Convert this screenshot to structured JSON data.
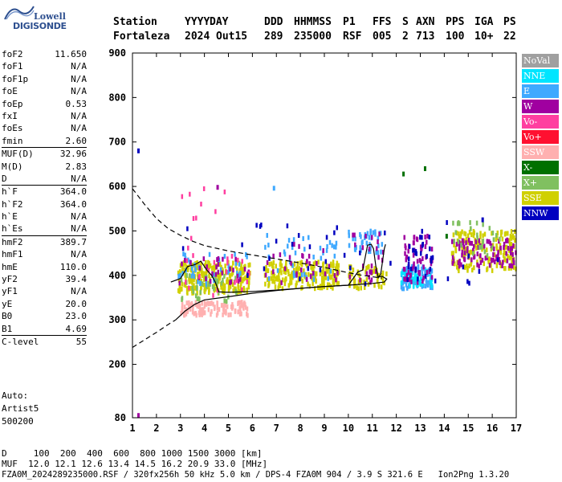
{
  "logo": {
    "top": "Lowell",
    "bottom": "DIGISONDE"
  },
  "header": {
    "labels": [
      "Station",
      "YYYY",
      "DAY",
      "DDD",
      "HHMMSS",
      "P1",
      "FFS",
      "S",
      "AXN",
      "PPS",
      "IGA",
      "PS"
    ],
    "values": [
      "Fortaleza",
      "2024",
      "Out15",
      "289",
      "235000",
      "RSF",
      "005",
      "2",
      "713",
      "100",
      "10+",
      "22"
    ]
  },
  "params": [
    [
      {
        "name": "foF2",
        "value": "11.650"
      },
      {
        "name": "foF1",
        "value": "N/A"
      },
      {
        "name": "foF1p",
        "value": "N/A"
      },
      {
        "name": "foE",
        "value": "N/A"
      },
      {
        "name": "foEp",
        "value": "0.53"
      },
      {
        "name": "fxI",
        "value": "N/A"
      },
      {
        "name": "foEs",
        "value": "N/A"
      },
      {
        "name": "fmin",
        "value": "2.60"
      }
    ],
    [
      {
        "name": "MUF(D)",
        "value": "32.96"
      },
      {
        "name": "M(D)",
        "value": "2.83"
      },
      {
        "name": "D",
        "value": "N/A"
      }
    ],
    [
      {
        "name": "h`F",
        "value": "364.0"
      },
      {
        "name": "h`F2",
        "value": "364.0"
      },
      {
        "name": "h`E",
        "value": "N/A"
      },
      {
        "name": "h`Es",
        "value": "N/A"
      }
    ],
    [
      {
        "name": "hmF2",
        "value": "389.7"
      },
      {
        "name": "hmF1",
        "value": "N/A"
      },
      {
        "name": "hmE",
        "value": "110.0"
      },
      {
        "name": "yF2",
        "value": "39.4"
      },
      {
        "name": "yF1",
        "value": "N/A"
      },
      {
        "name": "yE",
        "value": "20.0"
      },
      {
        "name": "B0",
        "value": "23.0"
      },
      {
        "name": "B1",
        "value": "4.69"
      }
    ],
    [
      {
        "name": "C-level",
        "value": "55"
      }
    ]
  ],
  "auto": {
    "line1": "Auto:",
    "line2": "Artist5",
    "line3": "500200"
  },
  "legend": [
    {
      "label": "NoVal",
      "color": "#a0a0a0"
    },
    {
      "label": "NNE",
      "color": "#00e5ff"
    },
    {
      "label": "E",
      "color": "#3fa9ff"
    },
    {
      "label": "W",
      "color": "#a000a0"
    },
    {
      "label": "Vo-",
      "color": "#ff3fa0"
    },
    {
      "label": "Vo+",
      "color": "#ff1030"
    },
    {
      "label": "SSW",
      "color": "#ffb0b0"
    },
    {
      "label": "X-",
      "color": "#007000"
    },
    {
      "label": "X+",
      "color": "#80c060"
    },
    {
      "label": "SSE",
      "color": "#d0d000"
    },
    {
      "label": "NNW",
      "color": "#0000c0"
    }
  ],
  "footer": {
    "line1": "D     100  200  400  600  800 1000 1500 3000 [km]",
    "line2": "MUF  12.0 12.1 12.6 13.4 14.5 16.2 20.9 33.0 [MHz]",
    "line3": "FZA0M_2024289235000.RSF / 320fx256h 50 kHz 5.0 km / DPS-4 FZA0M 904 / 3.9 S 321.6 E   Ion2Png 1.3.20"
  },
  "chart_data": {
    "type": "scatter",
    "xlim": [
      1,
      17
    ],
    "ylim": [
      80,
      900
    ],
    "x_ticks": [
      1,
      2,
      3,
      4,
      5,
      6,
      7,
      8,
      9,
      10,
      11,
      12,
      13,
      14,
      15,
      16,
      17
    ],
    "y_ticks": [
      80,
      200,
      300,
      400,
      500,
      600,
      700,
      800,
      900
    ],
    "grid": false,
    "legend_position": "right",
    "ionogram_clusters": [
      {
        "mode": "SSE",
        "x": [
          2.9,
          5.9
        ],
        "y": [
          360,
          430
        ],
        "count": 260
      },
      {
        "mode": "SSE",
        "x": [
          6.5,
          9.6
        ],
        "y": [
          370,
          430
        ],
        "count": 200
      },
      {
        "mode": "SSW",
        "x": [
          3.0,
          5.8
        ],
        "y": [
          310,
          340
        ],
        "count": 110
      },
      {
        "mode": "X+",
        "x": [
          2.9,
          5.5
        ],
        "y": [
          340,
          400
        ],
        "count": 40
      },
      {
        "mode": "E",
        "x": [
          2.9,
          5.8
        ],
        "y": [
          380,
          450
        ],
        "count": 40
      },
      {
        "mode": "W",
        "x": [
          2.9,
          5.9
        ],
        "y": [
          380,
          440
        ],
        "count": 30
      },
      {
        "mode": "E",
        "x": [
          6.5,
          9.6
        ],
        "y": [
          390,
          490
        ],
        "count": 40
      },
      {
        "mode": "W",
        "x": [
          6.5,
          9.6
        ],
        "y": [
          380,
          470
        ],
        "count": 30
      },
      {
        "mode": "SSE",
        "x": [
          10.0,
          11.6
        ],
        "y": [
          370,
          420
        ],
        "count": 60
      },
      {
        "mode": "E",
        "x": [
          10.0,
          11.5
        ],
        "y": [
          450,
          500
        ],
        "count": 40
      },
      {
        "mode": "W",
        "x": [
          10.0,
          11.5
        ],
        "y": [
          380,
          500
        ],
        "count": 25
      },
      {
        "mode": "E",
        "x": [
          12.2,
          13.5
        ],
        "y": [
          370,
          420
        ],
        "count": 80
      },
      {
        "mode": "NNE",
        "x": [
          12.2,
          13.5
        ],
        "y": [
          375,
          410
        ],
        "count": 40
      },
      {
        "mode": "W",
        "x": [
          12.3,
          13.5
        ],
        "y": [
          380,
          490
        ],
        "count": 60
      },
      {
        "mode": "NNW",
        "x": [
          12.5,
          13.5
        ],
        "y": [
          390,
          500
        ],
        "count": 25
      },
      {
        "mode": "SSE",
        "x": [
          14.3,
          17.0
        ],
        "y": [
          410,
          500
        ],
        "count": 160
      },
      {
        "mode": "W",
        "x": [
          14.3,
          17.0
        ],
        "y": [
          420,
          480
        ],
        "count": 90
      },
      {
        "mode": "X+",
        "x": [
          14.3,
          16.5
        ],
        "y": [
          440,
          520
        ],
        "count": 30
      },
      {
        "mode": "Vo-",
        "x": [
          2.9,
          5.9
        ],
        "y": [
          350,
          600
        ],
        "count": 30
      },
      {
        "mode": "NNW",
        "x": [
          2.9,
          16.5
        ],
        "y": [
          380,
          520
        ],
        "count": 40
      }
    ],
    "isolated_points": [
      {
        "mode": "NNW",
        "x": 1.25,
        "y": 680
      },
      {
        "mode": "W",
        "x": 1.25,
        "y": 85
      },
      {
        "mode": "X-",
        "x": 12.3,
        "y": 628
      },
      {
        "mode": "X-",
        "x": 13.2,
        "y": 640
      },
      {
        "mode": "E",
        "x": 6.9,
        "y": 596
      },
      {
        "mode": "W",
        "x": 4.55,
        "y": 598
      },
      {
        "mode": "NNW",
        "x": 15.6,
        "y": 525
      },
      {
        "mode": "X-",
        "x": 14.1,
        "y": 488
      }
    ],
    "curves": [
      {
        "name": "profile_upper_dashed",
        "style": "dashed",
        "points": [
          [
            1,
            595
          ],
          [
            1.5,
            560
          ],
          [
            2,
            528
          ],
          [
            2.5,
            505
          ],
          [
            3,
            490
          ],
          [
            3.5,
            477
          ],
          [
            4,
            467
          ],
          [
            5,
            455
          ],
          [
            6,
            446
          ],
          [
            7,
            437
          ],
          [
            8,
            428
          ],
          [
            9,
            418
          ],
          [
            10,
            406
          ],
          [
            10.5,
            401
          ],
          [
            11,
            397
          ],
          [
            11.4,
            394
          ]
        ]
      },
      {
        "name": "profile_lower_dashed",
        "style": "dashed",
        "points": [
          [
            1,
            238
          ],
          [
            1.5,
            255
          ],
          [
            2,
            272
          ],
          [
            2.5,
            290
          ],
          [
            2.8,
            300
          ]
        ]
      },
      {
        "name": "profile_solid",
        "style": "solid",
        "points": [
          [
            2.8,
            300
          ],
          [
            3.2,
            320
          ],
          [
            3.6,
            335
          ],
          [
            4,
            345
          ],
          [
            5,
            352
          ],
          [
            6,
            360
          ],
          [
            7,
            366
          ],
          [
            8,
            371
          ],
          [
            9,
            375
          ],
          [
            10,
            378
          ],
          [
            11,
            382
          ],
          [
            11.5,
            385
          ],
          [
            11.6,
            392
          ],
          [
            11.4,
            398
          ],
          [
            11.2,
            396
          ]
        ]
      },
      {
        "name": "virtual_height_trace",
        "style": "solid",
        "points": [
          [
            2.6,
            385
          ],
          [
            3.0,
            393
          ],
          [
            3.3,
            420
          ],
          [
            3.6,
            424
          ],
          [
            3.85,
            432
          ],
          [
            4.1,
            412
          ],
          [
            4.3,
            400
          ],
          [
            4.45,
            385
          ],
          [
            4.6,
            363
          ],
          [
            5,
            362
          ],
          [
            6,
            364
          ],
          [
            7,
            367
          ],
          [
            8,
            371
          ],
          [
            9,
            375
          ],
          [
            10,
            378
          ],
          [
            10.2,
            393
          ],
          [
            10.4,
            408
          ],
          [
            10.6,
            412
          ],
          [
            10.8,
            468
          ],
          [
            10.95,
            470
          ],
          [
            11.05,
            460
          ],
          [
            11.15,
            420
          ],
          [
            11.25,
            395
          ],
          [
            11.35,
            403
          ],
          [
            11.5,
            460
          ],
          [
            11.55,
            470
          ]
        ]
      }
    ]
  }
}
